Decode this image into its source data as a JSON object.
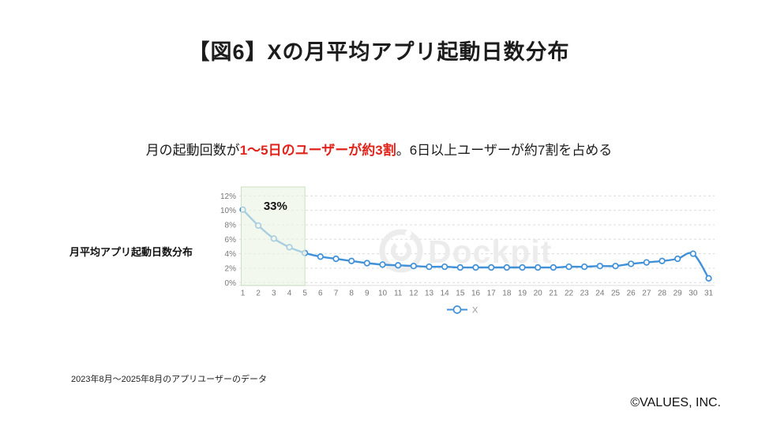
{
  "slide": {
    "title": "【図6】Xの月平均アプリ起動日数分布",
    "subtitle": {
      "prefix": "月の起動回数が",
      "highlight": "1〜5日のユーザーが約3割",
      "suffix": "。6日以上ユーザーが約7割を占める"
    },
    "chart_label": "月平均アプリ起動日数分布",
    "footnote": "2023年8月〜2025年8月のアプリユーザーのデータ",
    "copyright": "©VALUES, INC.",
    "watermark": "Dockpit"
  },
  "colors": {
    "line_blue": "#4191d9",
    "accent_red": "#e0241c",
    "highlight_fill": "#eaf3e3",
    "highlight_border": "#cbdfc2",
    "grid": "#dcdcdc",
    "axis_line": "#e2e2e2",
    "axis_text": "#777777",
    "legend_text": "#999999",
    "watermark_gray": "#ececec",
    "annotation_text": "#111111"
  },
  "chart_data": {
    "type": "line",
    "title": "",
    "xlabel": "",
    "ylabel": "",
    "x": [
      1,
      2,
      3,
      4,
      5,
      6,
      7,
      8,
      9,
      10,
      11,
      12,
      13,
      14,
      15,
      16,
      17,
      18,
      19,
      20,
      21,
      22,
      23,
      24,
      25,
      26,
      27,
      28,
      29,
      30,
      31
    ],
    "series": [
      {
        "name": "X",
        "values": [
          10.1,
          7.9,
          6.1,
          4.9,
          4.1,
          3.6,
          3.3,
          3.0,
          2.7,
          2.5,
          2.4,
          2.3,
          2.2,
          2.2,
          2.1,
          2.1,
          2.1,
          2.1,
          2.1,
          2.1,
          2.1,
          2.2,
          2.2,
          2.3,
          2.3,
          2.6,
          2.8,
          3.0,
          3.3,
          4.0,
          0.6
        ]
      }
    ],
    "ylim": [
      0,
      12
    ],
    "ytick_step": 2,
    "yticks": [
      "0%",
      "2%",
      "4%",
      "6%",
      "8%",
      "10%",
      "12%"
    ],
    "grid": "dashed-horizontal",
    "legend_position": "bottom",
    "legend": [
      "X"
    ],
    "highlight": {
      "x_start": 1,
      "x_end": 5,
      "label": "33%"
    }
  }
}
